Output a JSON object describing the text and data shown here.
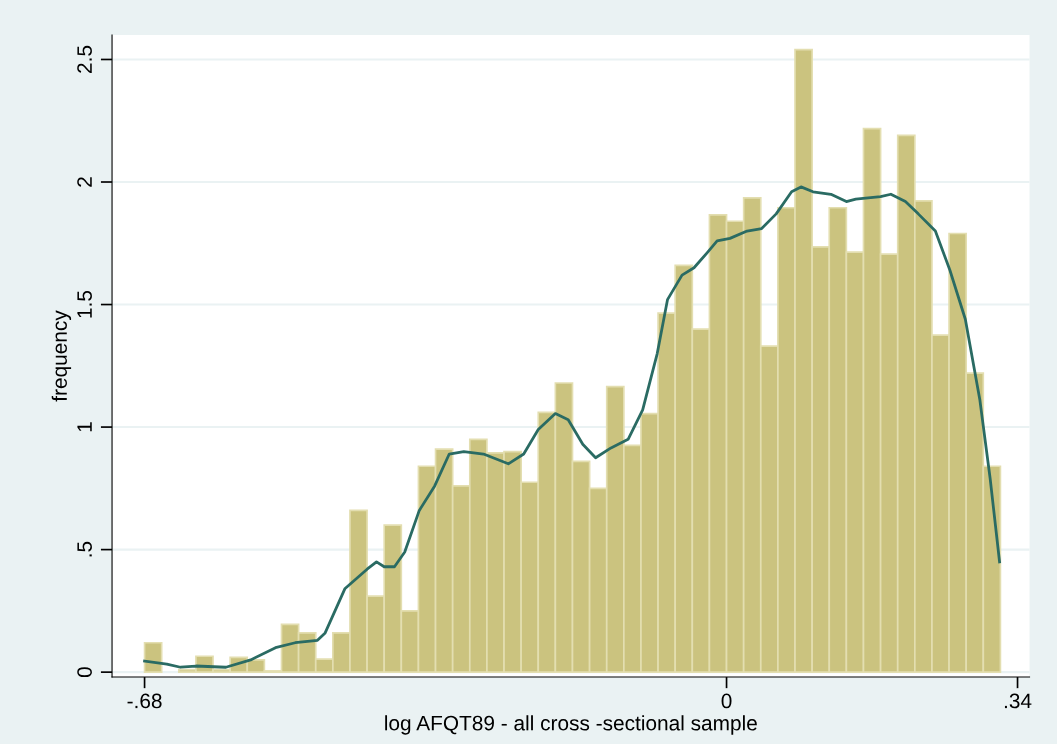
{
  "chart_data": {
    "type": "histogram",
    "xlabel": "log AFQT89 - all cross -sectional sample",
    "ylabel": "frequency",
    "bins": [
      -0.68,
      -0.66,
      -0.64,
      -0.62,
      -0.6,
      -0.58,
      -0.56,
      -0.54,
      -0.52,
      -0.5,
      -0.48,
      -0.46,
      -0.44,
      -0.42,
      -0.4,
      -0.38,
      -0.36,
      -0.34,
      -0.32,
      -0.3,
      -0.28,
      -0.26,
      -0.24,
      -0.22,
      -0.2,
      -0.18,
      -0.16,
      -0.14,
      -0.12,
      -0.1,
      -0.08,
      -0.06,
      -0.04,
      -0.02,
      0,
      0.02,
      0.04,
      0.06,
      0.08,
      0.1,
      0.12,
      0.14,
      0.16,
      0.18,
      0.2,
      0.22,
      0.24,
      0.26,
      0.28,
      0.3,
      0.32
    ],
    "values": [
      0.12,
      0,
      0.01,
      0.065,
      0.01,
      0.06,
      0.05,
      0.005,
      0.195,
      0.16,
      0.053,
      0.16,
      0.66,
      0.31,
      0.6,
      0.25,
      0.84,
      0.91,
      0.76,
      0.95,
      0.895,
      0.9,
      0.775,
      1.06,
      1.18,
      0.86,
      0.75,
      1.165,
      0.925,
      1.055,
      1.465,
      1.66,
      1.4,
      1.866,
      1.84,
      1.935,
      1.33,
      1.895,
      2.54,
      1.735,
      1.895,
      1.714,
      2.218,
      1.706,
      2.19,
      1.923,
      1.375,
      1.79,
      1.22,
      0.84
    ],
    "color": "#cbc37f",
    "series": [
      {
        "type": "line",
        "color": "#2a6b63",
        "x": [
          -0.68,
          -0.654,
          -0.638,
          -0.62,
          -0.585,
          -0.556,
          -0.527,
          -0.504,
          -0.478,
          -0.469,
          -0.446,
          -0.42,
          -0.409,
          -0.4,
          -0.388,
          -0.376,
          -0.359,
          -0.341,
          -0.324,
          -0.307,
          -0.284,
          -0.255,
          -0.237,
          -0.22,
          -0.2,
          -0.185,
          -0.168,
          -0.153,
          -0.135,
          -0.115,
          -0.098,
          -0.081,
          -0.069,
          -0.052,
          -0.038,
          -0.023,
          -0.011,
          0.004,
          0.024,
          0.041,
          0.058,
          0.076,
          0.087,
          0.101,
          0.122,
          0.14,
          0.151,
          0.18,
          0.192,
          0.209,
          0.224,
          0.244,
          0.261,
          0.279,
          0.296,
          0.308,
          0.319
        ],
        "values": [
          0.045,
          0.033,
          0.02,
          0.025,
          0.02,
          0.05,
          0.1,
          0.12,
          0.13,
          0.16,
          0.34,
          0.42,
          0.45,
          0.43,
          0.43,
          0.49,
          0.66,
          0.76,
          0.89,
          0.9,
          0.89,
          0.85,
          0.89,
          0.99,
          1.055,
          1.03,
          0.93,
          0.875,
          0.915,
          0.95,
          1.07,
          1.3,
          1.52,
          1.62,
          1.65,
          1.71,
          1.76,
          1.77,
          1.8,
          1.81,
          1.87,
          1.96,
          1.98,
          1.96,
          1.95,
          1.92,
          1.93,
          1.94,
          1.95,
          1.92,
          1.87,
          1.8,
          1.64,
          1.44,
          1.11,
          0.79,
          0.45
        ]
      }
    ],
    "xlim": [
      -0.718,
      0.354
    ],
    "ylim": [
      -0.02,
      2.6
    ],
    "xticks": [
      {
        "value": -0.68,
        "label": "-.68"
      },
      0,
      {
        "value": 0.34,
        "label": ".34"
      }
    ],
    "yticks": [
      0,
      {
        "value": 0.5,
        "label": ".5"
      },
      1,
      {
        "value": 1.5,
        "label": "1.5"
      },
      2,
      {
        "value": 2.5,
        "label": "2.5"
      }
    ],
    "grid": "y",
    "legend": false
  }
}
